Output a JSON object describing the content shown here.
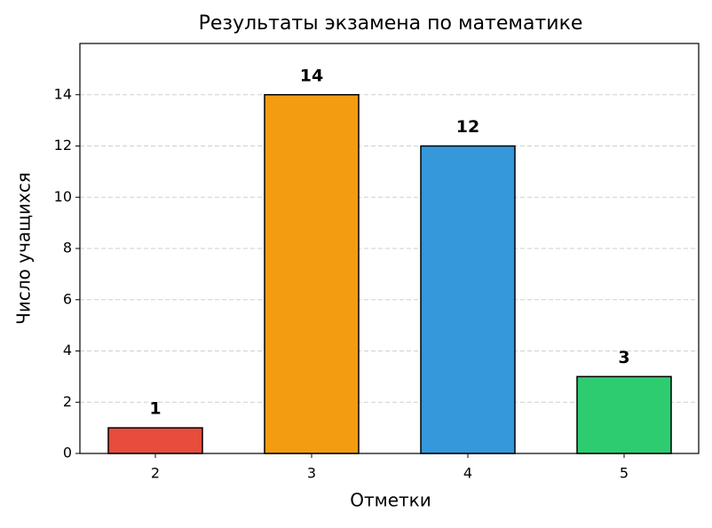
{
  "chart_data": {
    "type": "bar",
    "title": "Результаты экзамена по математике",
    "x_label": "Отметки",
    "y_label": "Число учащихся",
    "categories": [
      "2",
      "3",
      "4",
      "5"
    ],
    "values": [
      1,
      14,
      12,
      3
    ],
    "colors": [
      "#e74c3c",
      "#f39c12",
      "#3498db",
      "#2ecc71"
    ],
    "ylim": [
      0,
      16
    ],
    "yticks": [
      0,
      2,
      4,
      6,
      8,
      10,
      12,
      14
    ],
    "grid": true
  }
}
